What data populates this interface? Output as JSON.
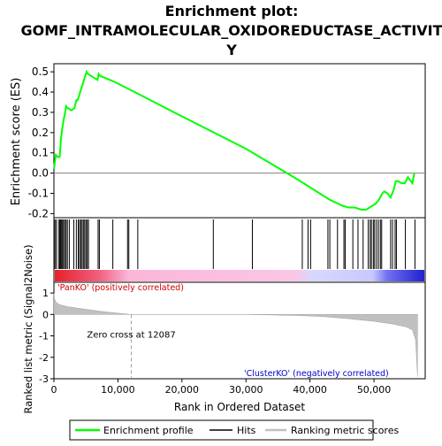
{
  "chart_data": {
    "type": "line",
    "title_lines": [
      "Enrichment plot:",
      "GOMF_INTRAMOLECULAR_OXIDOREDUCTASE_ACTIVIT",
      "Y"
    ],
    "xlabel": "Rank in Ordered Dataset",
    "xlim": [
      0,
      58000
    ],
    "x_ticks": [
      0,
      10000,
      20000,
      30000,
      40000,
      50000
    ],
    "x_tick_labels": [
      "0",
      "10,000",
      "20,000",
      "30,000",
      "40,000",
      "50,000"
    ],
    "es_panel": {
      "ylabel": "Enrichment score (ES)",
      "ylim": [
        -0.22,
        0.54
      ],
      "y_ticks": [
        -0.2,
        -0.1,
        0.0,
        0.1,
        0.2,
        0.3,
        0.4,
        0.5
      ],
      "y_tick_labels": [
        "-0.2",
        "-0.1",
        "0.0",
        "0.1",
        "0.2",
        "0.3",
        "0.4",
        "0.5"
      ],
      "series": [
        {
          "name": "Enrichment profile",
          "color": "#00ff00",
          "x": [
            0,
            300,
            600,
            900,
            1100,
            1300,
            1500,
            1700,
            1900,
            2100,
            2300,
            2700,
            3200,
            3500,
            3700,
            3900,
            4100,
            4300,
            4500,
            4700,
            4900,
            5100,
            5300,
            6800,
            7000,
            7200,
            9500,
            12000,
            20000,
            30000,
            38000,
            43000,
            45000,
            46000,
            47000,
            48000,
            48800,
            49300,
            49800,
            50300,
            50800,
            51300,
            51600,
            52100,
            52600,
            53100,
            53400,
            53800,
            54300,
            54800,
            55300,
            56000,
            56300
          ],
          "y": [
            0.02,
            0.09,
            0.08,
            0.08,
            0.17,
            0.22,
            0.26,
            0.29,
            0.33,
            0.32,
            0.32,
            0.31,
            0.32,
            0.36,
            0.36,
            0.38,
            0.4,
            0.42,
            0.44,
            0.46,
            0.48,
            0.5,
            0.49,
            0.46,
            0.49,
            0.48,
            0.45,
            0.41,
            0.28,
            0.12,
            -0.03,
            -0.13,
            -0.16,
            -0.17,
            -0.17,
            -0.18,
            -0.18,
            -0.17,
            -0.16,
            -0.15,
            -0.13,
            -0.1,
            -0.09,
            -0.1,
            -0.12,
            -0.08,
            -0.04,
            -0.04,
            -0.05,
            -0.05,
            -0.02,
            -0.05,
            0.0
          ]
        }
      ]
    },
    "hits": [
      150,
      350,
      700,
      900,
      1050,
      1200,
      1350,
      1500,
      1700,
      1900,
      2100,
      2400,
      3100,
      3500,
      3800,
      4000,
      4200,
      4400,
      4600,
      4800,
      5000,
      5200,
      5400,
      6900,
      7100,
      9200,
      11500,
      11700,
      13100,
      24900,
      31000,
      38800,
      39700,
      40100,
      42800,
      43100,
      44300,
      45300,
      45500,
      46700,
      47500,
      48300,
      49100,
      49400,
      49600,
      49900,
      50100,
      50400,
      50700,
      51000,
      51200,
      52600,
      52900,
      53300,
      53500,
      54900,
      56400
    ],
    "metric_panel": {
      "ylabel": "Ranked list metric (Signal2Noise)",
      "ylim": [
        -3,
        1.5
      ],
      "y_ticks": [
        -3,
        -2,
        -1,
        0,
        1
      ],
      "y_tick_labels": [
        "-3",
        "-2",
        "-1",
        "0",
        "1"
      ],
      "zero_cross": 12087,
      "zero_cross_label": "Zero cross at 12087",
      "positive_label": "'PanKO' (positively correlated)",
      "negative_label": "'ClusterKO' (negatively correlated)",
      "curve_x": [
        0,
        100,
        300,
        600,
        1000,
        2000,
        4000,
        6000,
        8000,
        10000,
        12087,
        20000,
        30000,
        38000,
        42000,
        46000,
        50000,
        53000,
        55000,
        56000,
        56500,
        56800
      ],
      "curve_y": [
        1.0,
        0.72,
        0.6,
        0.5,
        0.45,
        0.37,
        0.28,
        0.2,
        0.12,
        0.06,
        0.0,
        0.0,
        0.0,
        -0.05,
        -0.1,
        -0.2,
        -0.32,
        -0.45,
        -0.58,
        -0.72,
        -1.2,
        -2.9
      ]
    },
    "legend": {
      "entries": [
        {
          "label": "Enrichment profile",
          "color": "#00ff00"
        },
        {
          "label": "Hits",
          "color": "#000000"
        },
        {
          "label": "Ranking metric scores",
          "color": "#c0c0c0"
        }
      ]
    }
  }
}
